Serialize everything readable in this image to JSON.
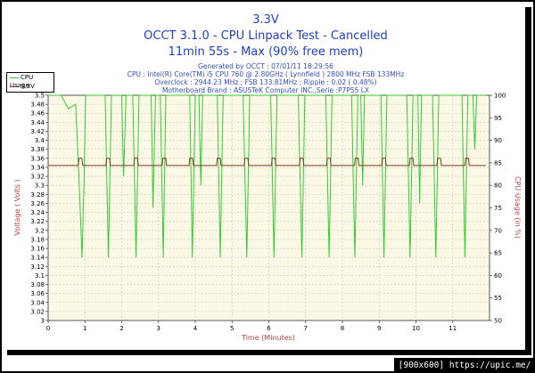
{
  "header": {
    "title": "3.3V",
    "subtitle": "OCCT 3.1.0 - CPU Linpack Test - Cancelled",
    "duration": "11min 55s - Max (90% free mem)",
    "info_lines": [
      "Generated by OCCT : 07/01/11 18:29:56",
      "CPU : Intel(R) Core(TM) i5 CPU 760 @ 2.80GHz ( Lynnfield ) 2800 MHz FSB 133MHz",
      "Overclock : 2944.23 MHz ; FSB 133.81MHz ; Ripple : 0.02 ( 0.48%)",
      "Motherboard Brand : ASUSTeK Computer INC.,Serie :P7P55 LX"
    ]
  },
  "footer": {
    "text": "[900x600] https://upic.me/"
  },
  "colors": {
    "cpu": "#33cc33",
    "voltage": "#7a3b22",
    "title": "#1f3fbf",
    "axis_label": "#c04040",
    "plot_bg": "#fbf8e6",
    "grid": "#c8c8c8"
  },
  "chart_data": {
    "type": "line",
    "xlabel": "Time (Minutes)",
    "ylabel_left": "Voltage ( Volts )",
    "ylabel_right": "CPU Usage (in %)",
    "xlim": [
      0,
      12
    ],
    "ylim_left": [
      3.0,
      3.5
    ],
    "ylim_right": [
      50,
      100
    ],
    "x_ticks": [
      "0",
      "1",
      "2",
      "3",
      "4",
      "5",
      "6",
      "7",
      "8",
      "9",
      "10",
      "11"
    ],
    "y_left_ticks": [
      "3",
      "3.02",
      "3.04",
      "3.06",
      "3.08",
      "3.1",
      "3.12",
      "3.14",
      "3.16",
      "3.18",
      "3.2",
      "3.22",
      "3.24",
      "3.26",
      "3.28",
      "3.3",
      "3.32",
      "3.34",
      "3.36",
      "3.38",
      "3.4",
      "3.42",
      "3.44",
      "3.46",
      "3.48",
      "3.5"
    ],
    "y_right_ticks": [
      "50",
      "55",
      "60",
      "65",
      "70",
      "75",
      "80",
      "85",
      "90",
      "95",
      "100"
    ],
    "legend_position": "top-left",
    "grid": true,
    "series": [
      {
        "name": "CPU Usage",
        "axis": "right",
        "points": [
          [
            0.0,
            100
          ],
          [
            0.35,
            100
          ],
          [
            0.55,
            97
          ],
          [
            0.75,
            98
          ],
          [
            0.85,
            79
          ],
          [
            0.92,
            64
          ],
          [
            0.97,
            79
          ],
          [
            1.02,
            100
          ],
          [
            1.55,
            100
          ],
          [
            1.64,
            64
          ],
          [
            1.72,
            100
          ],
          [
            2.0,
            100
          ],
          [
            2.05,
            82
          ],
          [
            2.12,
            100
          ],
          [
            2.3,
            100
          ],
          [
            2.39,
            64
          ],
          [
            2.47,
            100
          ],
          [
            2.8,
            100
          ],
          [
            2.85,
            75
          ],
          [
            2.92,
            100
          ],
          [
            3.05,
            100
          ],
          [
            3.13,
            64
          ],
          [
            3.2,
            100
          ],
          [
            3.85,
            100
          ],
          [
            3.92,
            64
          ],
          [
            4.0,
            100
          ],
          [
            4.1,
            100
          ],
          [
            4.15,
            80
          ],
          [
            4.2,
            100
          ],
          [
            4.6,
            100
          ],
          [
            4.68,
            64
          ],
          [
            4.76,
            100
          ],
          [
            5.3,
            100
          ],
          [
            5.4,
            64
          ],
          [
            5.48,
            100
          ],
          [
            6.05,
            100
          ],
          [
            6.14,
            64
          ],
          [
            6.22,
            100
          ],
          [
            6.8,
            100
          ],
          [
            6.9,
            64
          ],
          [
            6.98,
            100
          ],
          [
            7.55,
            100
          ],
          [
            7.64,
            64
          ],
          [
            7.72,
            100
          ],
          [
            8.25,
            100
          ],
          [
            8.34,
            64
          ],
          [
            8.42,
            100
          ],
          [
            8.5,
            100
          ],
          [
            8.55,
            80
          ],
          [
            8.6,
            100
          ],
          [
            9.05,
            100
          ],
          [
            9.13,
            64
          ],
          [
            9.21,
            100
          ],
          [
            9.75,
            100
          ],
          [
            9.84,
            64
          ],
          [
            9.92,
            100
          ],
          [
            10.05,
            100
          ],
          [
            10.1,
            76
          ],
          [
            10.15,
            100
          ],
          [
            10.45,
            100
          ],
          [
            10.54,
            64
          ],
          [
            10.62,
            100
          ],
          [
            11.25,
            100
          ],
          [
            11.33,
            64
          ],
          [
            11.41,
            100
          ],
          [
            11.55,
            100
          ],
          [
            11.6,
            88
          ],
          [
            11.65,
            100
          ],
          [
            11.9,
            100
          ]
        ]
      },
      {
        "name": "3.3V",
        "axis": "left",
        "baseline": 3.344,
        "peak": 3.36,
        "pulse_starts": [
          0.82,
          1.57,
          2.33,
          3.1,
          3.83,
          4.58,
          5.33,
          6.07,
          6.83,
          7.57,
          8.33,
          9.07,
          9.82,
          10.57,
          11.33
        ],
        "end_x": 11.9
      }
    ]
  }
}
